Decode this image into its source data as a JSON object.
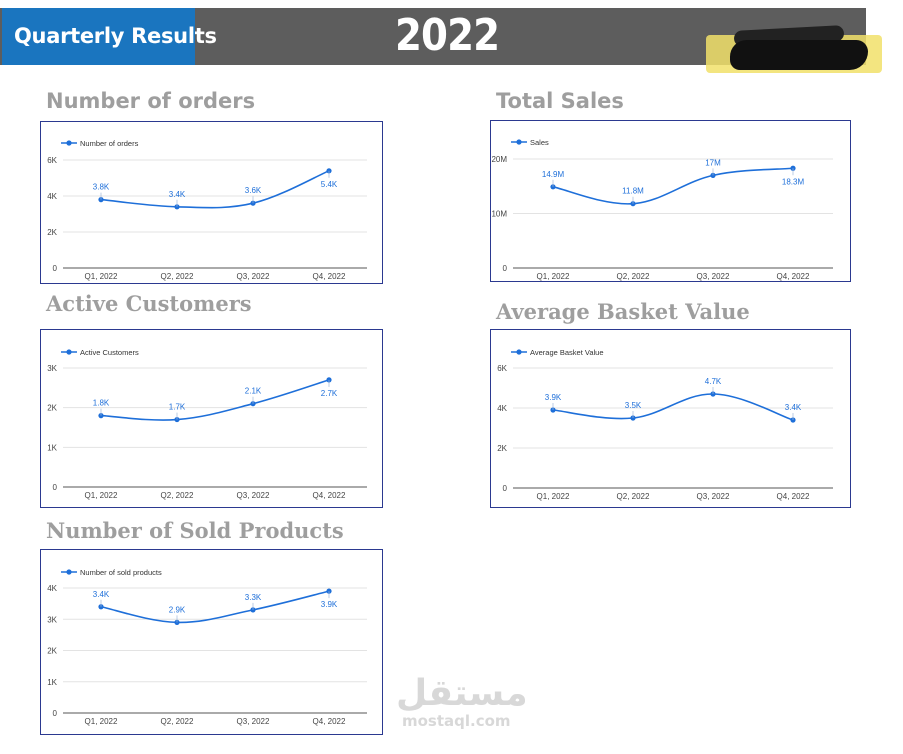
{
  "header": {
    "title": "Quarterly Results",
    "year": "2022"
  },
  "colors": {
    "header_bg": "#5d5d5d",
    "header_accent": "#1a75bf",
    "series_line": "#1e6fd9",
    "chart_border": "#2b3990",
    "title_gray": "#9e9e9e"
  },
  "watermark": {
    "arabic": "مستقل",
    "latin": "mostaql.com"
  },
  "charts": {
    "orders": {
      "title": "Number of orders"
    },
    "sales": {
      "title": "Total Sales"
    },
    "customers": {
      "title": "Active Customers"
    },
    "basket": {
      "title": "Average Basket Value"
    },
    "products": {
      "title": "Number of Sold Products"
    }
  },
  "chart_data": [
    {
      "id": "orders",
      "type": "line",
      "title": "Number of orders",
      "categories": [
        "Q1, 2022",
        "Q2, 2022",
        "Q3, 2022",
        "Q4, 2022"
      ],
      "series": [
        {
          "name": "Number of orders",
          "values": [
            3800,
            3400,
            3600,
            5400
          ]
        }
      ],
      "data_labels": [
        "3.8K",
        "3.4K",
        "3.6K",
        "5.4K"
      ],
      "y_ticks": [
        0,
        2000,
        4000,
        6000
      ],
      "y_tick_labels": [
        "0",
        "2K",
        "4K",
        "6K"
      ],
      "ylim": [
        0,
        6000
      ],
      "grid": true,
      "legend": "top-left"
    },
    {
      "id": "sales",
      "type": "line",
      "title": "Total Sales",
      "categories": [
        "Q1, 2022",
        "Q2, 2022",
        "Q3, 2022",
        "Q4, 2022"
      ],
      "series": [
        {
          "name": "Sales",
          "values": [
            14900000,
            11800000,
            17000000,
            18300000
          ]
        }
      ],
      "data_labels": [
        "14.9M",
        "11.8M",
        "17M",
        "18.3M"
      ],
      "y_ticks": [
        0,
        10000000,
        20000000
      ],
      "y_tick_labels": [
        "0",
        "10M",
        "20M"
      ],
      "ylim": [
        0,
        20000000
      ],
      "grid": true,
      "legend": "top-left"
    },
    {
      "id": "customers",
      "type": "line",
      "title": "Active Customers",
      "categories": [
        "Q1, 2022",
        "Q2, 2022",
        "Q3, 2022",
        "Q4, 2022"
      ],
      "series": [
        {
          "name": "Active Customers",
          "values": [
            1800,
            1700,
            2100,
            2700
          ]
        }
      ],
      "data_labels": [
        "1.8K",
        "1.7K",
        "2.1K",
        "2.7K"
      ],
      "y_ticks": [
        0,
        1000,
        2000,
        3000
      ],
      "y_tick_labels": [
        "0",
        "1K",
        "2K",
        "3K"
      ],
      "ylim": [
        0,
        3000
      ],
      "grid": true,
      "legend": "top-left"
    },
    {
      "id": "basket",
      "type": "line",
      "title": "Average Basket Value",
      "categories": [
        "Q1, 2022",
        "Q2, 2022",
        "Q3, 2022",
        "Q4, 2022"
      ],
      "series": [
        {
          "name": "Average Basket Value",
          "values": [
            3900,
            3500,
            4700,
            3400
          ]
        }
      ],
      "data_labels": [
        "3.9K",
        "3.5K",
        "4.7K",
        "3.4K"
      ],
      "y_ticks": [
        0,
        2000,
        4000,
        6000
      ],
      "y_tick_labels": [
        "0",
        "2K",
        "4K",
        "6K"
      ],
      "ylim": [
        0,
        6000
      ],
      "grid": true,
      "legend": "top-left"
    },
    {
      "id": "products",
      "type": "line",
      "title": "Number of Sold Products",
      "categories": [
        "Q1, 2022",
        "Q2, 2022",
        "Q3, 2022",
        "Q4, 2022"
      ],
      "series": [
        {
          "name": "Number of sold products",
          "values": [
            3400,
            2900,
            3300,
            3900
          ]
        }
      ],
      "data_labels": [
        "3.4K",
        "2.9K",
        "3.3K",
        "3.9K"
      ],
      "y_ticks": [
        0,
        1000,
        2000,
        3000,
        4000
      ],
      "y_tick_labels": [
        "0",
        "1K",
        "2K",
        "3K",
        "4K"
      ],
      "ylim": [
        0,
        4000
      ],
      "grid": true,
      "legend": "top-left"
    }
  ]
}
